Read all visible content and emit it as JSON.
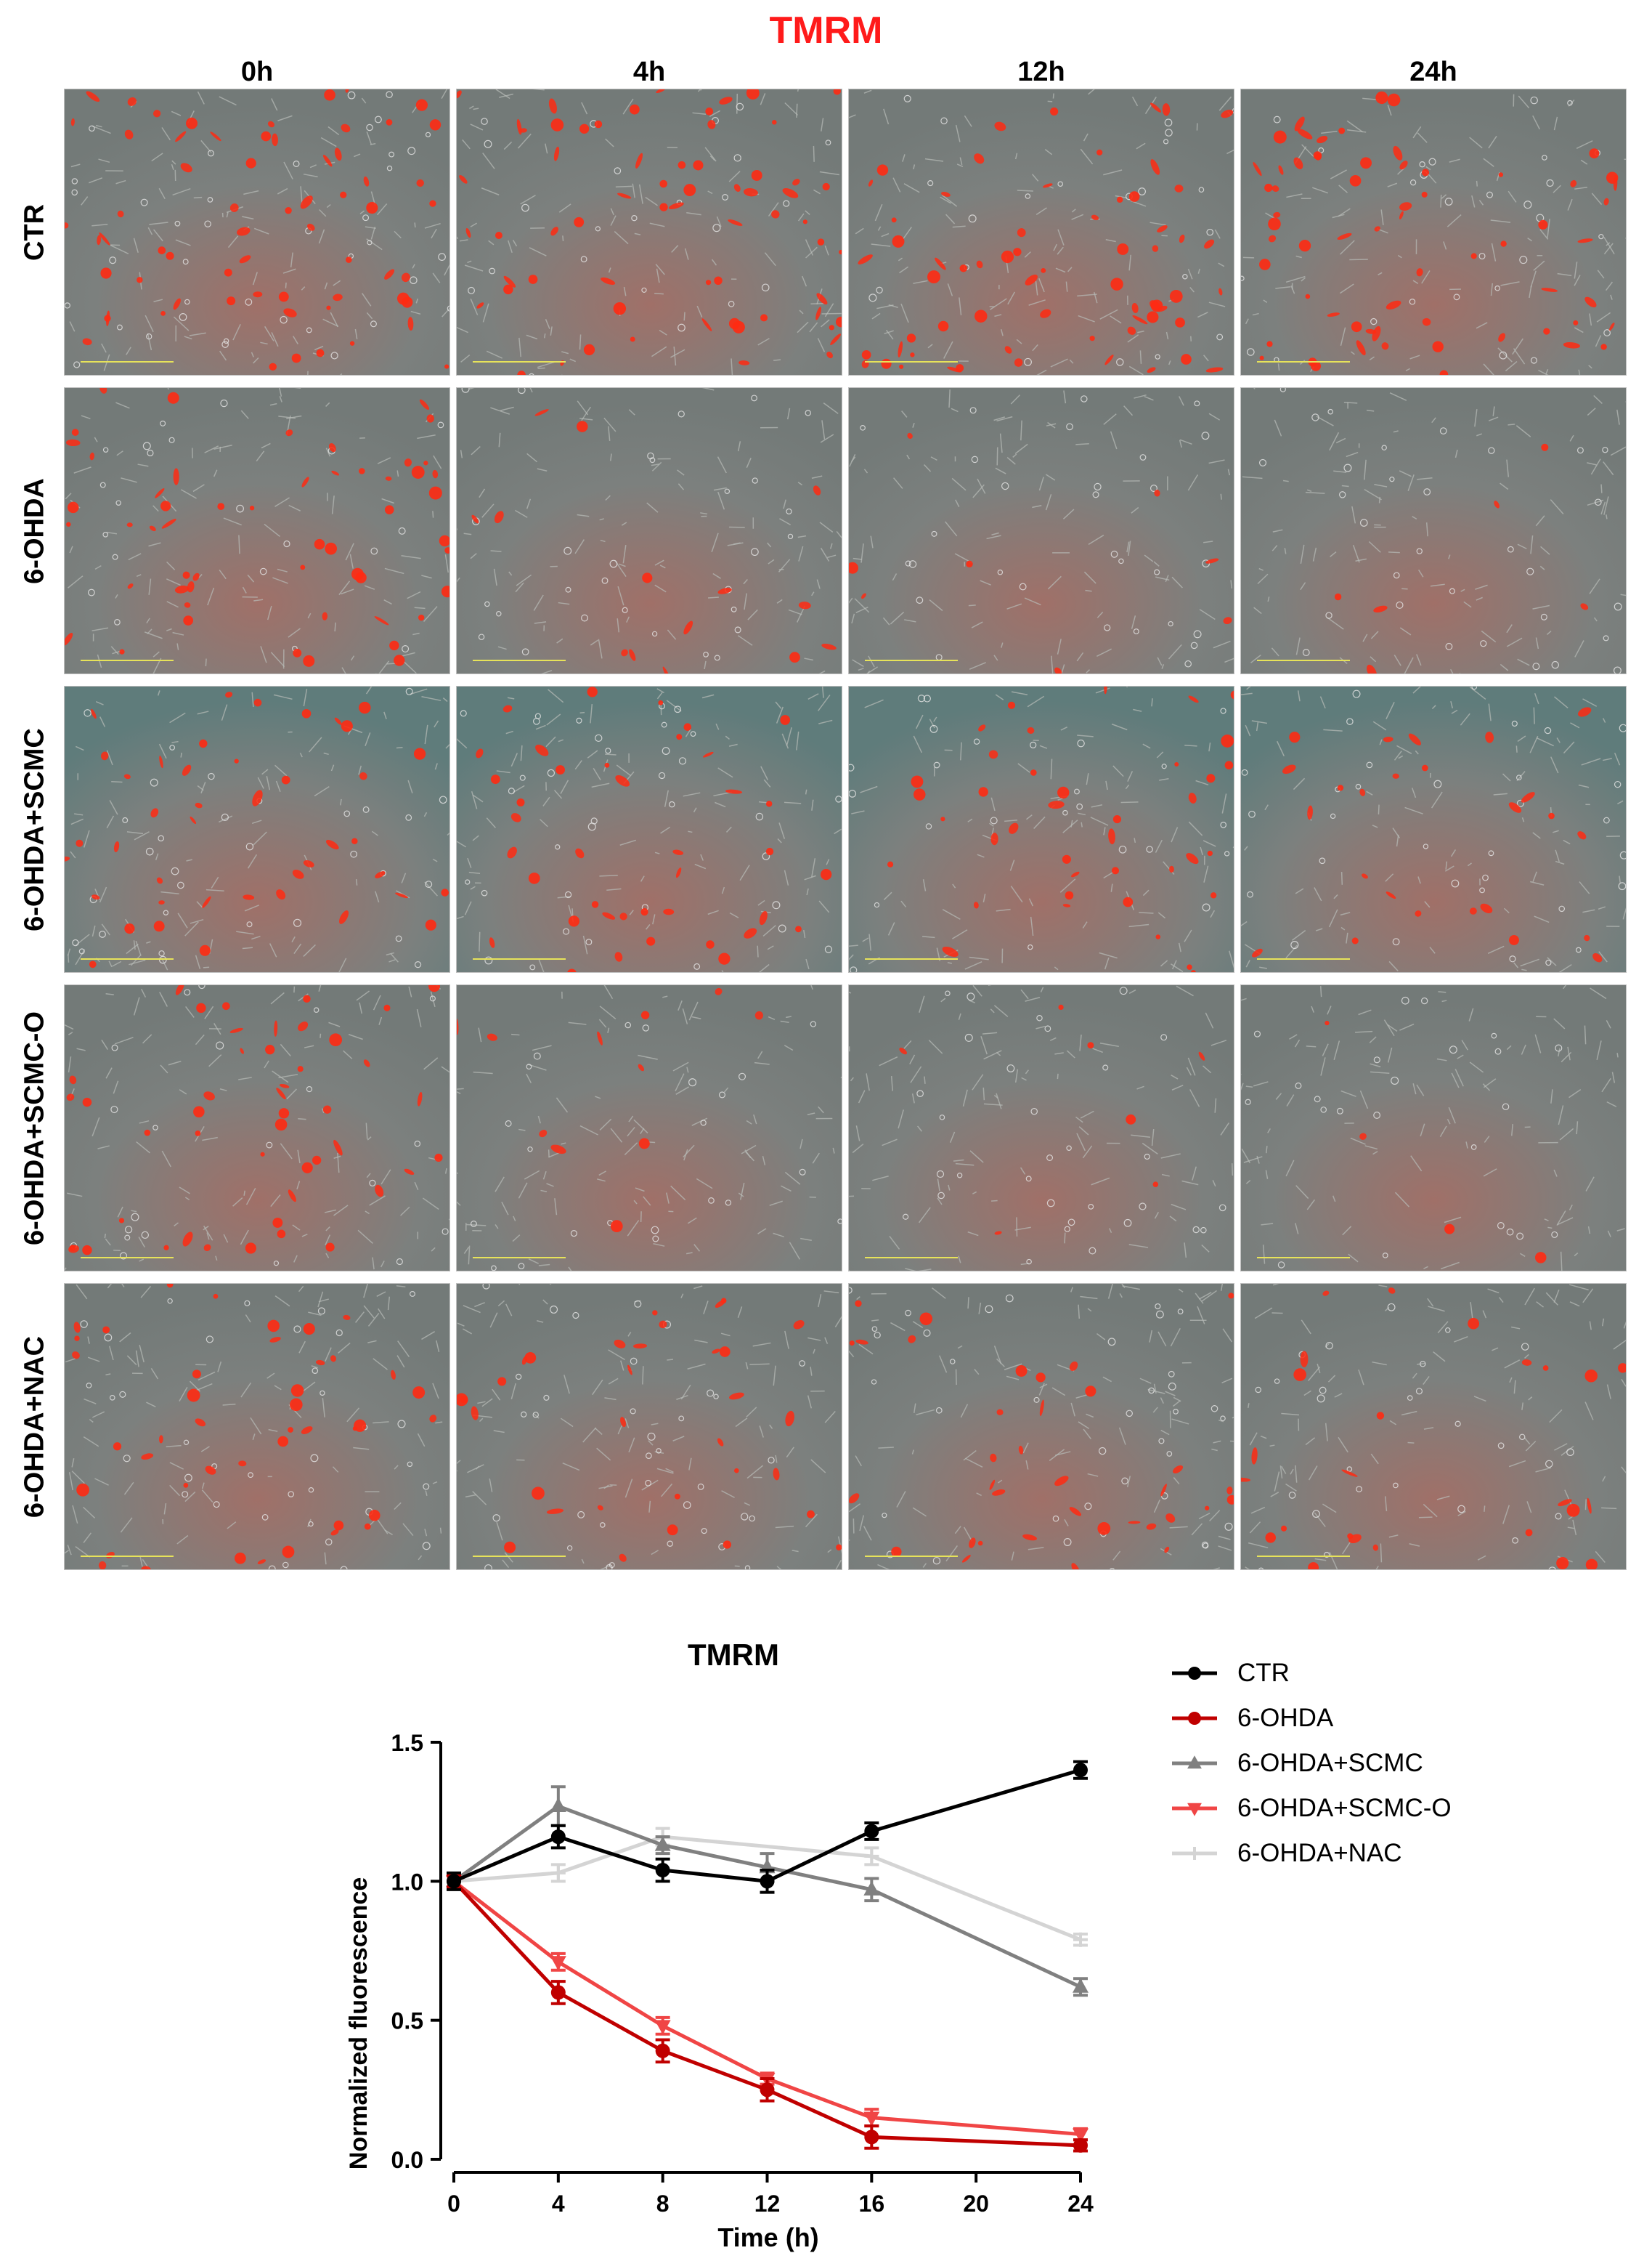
{
  "micrograph_grid": {
    "title": "TMRM",
    "title_color": "#ff1a1a",
    "columns": [
      "0h",
      "4h",
      "12h",
      "24h"
    ],
    "rows": [
      "CTR",
      "6-OHDA",
      "6-OHDA+SCMC",
      "6-OHDA+SCMC-O",
      "6-OHDA+NAC"
    ],
    "red_signal_intensity": [
      [
        0.9,
        0.9,
        0.9,
        0.9
      ],
      [
        0.75,
        0.2,
        0.12,
        0.08
      ],
      [
        0.6,
        0.55,
        0.55,
        0.35
      ],
      [
        0.65,
        0.15,
        0.1,
        0.06
      ],
      [
        0.6,
        0.45,
        0.5,
        0.35
      ]
    ],
    "colors": {
      "background": "#7c807e",
      "signal": "#ff2a12",
      "scale_bar": "#e7e35a"
    }
  },
  "chart_data": {
    "type": "line",
    "title": "TMRM",
    "xlabel": "Time (h)",
    "ylabel": "Normalized fluorescence",
    "xlim": [
      0,
      24
    ],
    "ylim": [
      0,
      1.5
    ],
    "xticks": [
      0,
      4,
      8,
      12,
      16,
      20,
      24
    ],
    "yticks": [
      0.0,
      0.5,
      1.0,
      1.5
    ],
    "xtick_labels": [
      "0",
      "4",
      "8",
      "12",
      "16",
      "20",
      "24"
    ],
    "ytick_labels": [
      "0.0",
      "0.5",
      "1.0",
      "1.5"
    ],
    "legend_position": "right",
    "series": [
      {
        "name": "6-OHDA+NAC",
        "color": "#d4d4d4",
        "marker": "plus",
        "x": [
          0,
          4,
          8,
          16,
          24
        ],
        "y": [
          1.0,
          1.03,
          1.16,
          1.09,
          0.79
        ],
        "err": [
          0.02,
          0.03,
          0.03,
          0.03,
          0.02
        ]
      },
      {
        "name": "6-OHDA+SCMC",
        "color": "#808080",
        "marker": "triangle",
        "x": [
          0,
          4,
          8,
          12,
          16,
          24
        ],
        "y": [
          1.0,
          1.27,
          1.13,
          1.05,
          0.97,
          0.62
        ],
        "err": [
          0.02,
          0.07,
          0.03,
          0.05,
          0.04,
          0.03
        ]
      },
      {
        "name": "6-OHDA+SCMC-O",
        "color": "#f04545",
        "marker": "tri-down",
        "x": [
          0,
          4,
          8,
          12,
          16,
          24
        ],
        "y": [
          1.0,
          0.71,
          0.48,
          0.29,
          0.15,
          0.09
        ],
        "err": [
          0.02,
          0.03,
          0.03,
          0.02,
          0.03,
          0.02
        ]
      },
      {
        "name": "6-OHDA",
        "color": "#c00000",
        "marker": "circle",
        "x": [
          0,
          4,
          8,
          12,
          16,
          24
        ],
        "y": [
          1.0,
          0.6,
          0.39,
          0.25,
          0.08,
          0.05
        ],
        "err": [
          0.02,
          0.04,
          0.04,
          0.04,
          0.04,
          0.02
        ]
      },
      {
        "name": "CTR",
        "color": "#000000",
        "marker": "circle",
        "x": [
          0,
          4,
          8,
          12,
          16,
          24
        ],
        "y": [
          1.0,
          1.16,
          1.04,
          1.0,
          1.18,
          1.4
        ],
        "err": [
          0.03,
          0.04,
          0.04,
          0.04,
          0.03,
          0.03
        ]
      }
    ],
    "legend_order": [
      "CTR",
      "6-OHDA",
      "6-OHDA+SCMC",
      "6-OHDA+SCMC-O",
      "6-OHDA+NAC"
    ]
  }
}
